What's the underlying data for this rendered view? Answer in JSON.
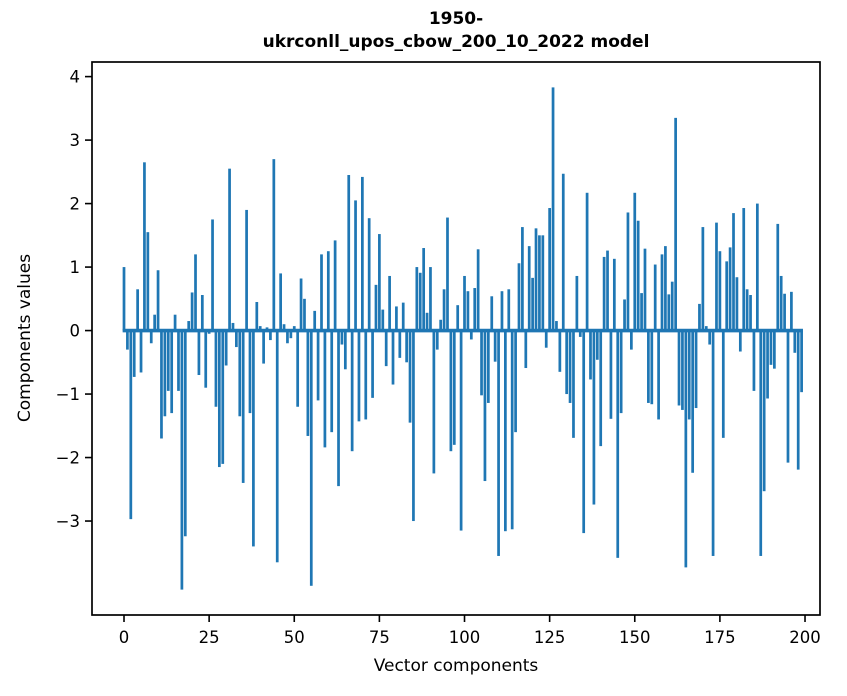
{
  "figure": {
    "title_line1": "1950-",
    "title_line2": "ukrconll_upos_cbow_200_10_2022 model",
    "xlabel": "Vector components",
    "ylabel": "Components values"
  },
  "chart_data": {
    "type": "bar",
    "title": "1950-\nukrconll_upos_cbow_200_10_2022 model",
    "xlabel": "Vector components",
    "ylabel": "Components values",
    "bar_color": "#1f77b4",
    "axis_color": "#000000",
    "background_color": "#ffffff",
    "grid": false,
    "legend_position": "none",
    "n_components": 200,
    "bar_width": 0.8,
    "xlim": [
      -9.4,
      204.4
    ],
    "ylim": [
      -4.48,
      4.23
    ],
    "xticks": [
      {
        "value": 0,
        "label": "0"
      },
      {
        "value": 25,
        "label": "25"
      },
      {
        "value": 50,
        "label": "50"
      },
      {
        "value": 75,
        "label": "75"
      },
      {
        "value": 100,
        "label": "100"
      },
      {
        "value": 125,
        "label": "125"
      },
      {
        "value": 150,
        "label": "150"
      },
      {
        "value": 175,
        "label": "175"
      },
      {
        "value": 200,
        "label": "200"
      }
    ],
    "yticks": [
      {
        "value": 4,
        "label": "4"
      },
      {
        "value": 3,
        "label": "3"
      },
      {
        "value": 2,
        "label": "2"
      },
      {
        "value": 1,
        "label": "1"
      },
      {
        "value": 0,
        "label": "0"
      },
      {
        "value": -1,
        "label": "−1"
      },
      {
        "value": -2,
        "label": "−2"
      },
      {
        "value": -3,
        "label": "−3"
      }
    ],
    "values": [
      1.0,
      -0.3,
      -2.97,
      -0.73,
      0.65,
      -0.66,
      2.65,
      1.55,
      -0.2,
      0.25,
      0.95,
      -1.7,
      -1.35,
      -0.95,
      -1.3,
      0.25,
      -0.95,
      -4.08,
      -3.24,
      0.15,
      0.6,
      1.2,
      -0.7,
      0.56,
      -0.9,
      -0.05,
      1.75,
      -1.2,
      -2.15,
      -2.1,
      -0.55,
      2.55,
      0.12,
      -0.26,
      -1.35,
      -2.4,
      1.9,
      -1.3,
      -3.4,
      0.45,
      0.07,
      -0.52,
      0.05,
      -0.15,
      2.7,
      -3.65,
      0.9,
      0.1,
      -0.2,
      -0.12,
      0.07,
      -1.2,
      0.82,
      0.5,
      -1.66,
      -4.02,
      0.31,
      -1.1,
      1.2,
      -1.84,
      1.25,
      -1.6,
      1.42,
      -2.45,
      -0.22,
      -0.61,
      2.45,
      -1.9,
      2.05,
      -1.43,
      2.42,
      -1.4,
      1.77,
      -1.06,
      0.72,
      1.52,
      0.33,
      -0.56,
      0.86,
      -0.85,
      0.38,
      -0.43,
      0.44,
      -0.5,
      -1.45,
      -3.0,
      1.0,
      0.91,
      1.3,
      0.28,
      1.0,
      -2.25,
      -0.3,
      0.17,
      0.65,
      1.78,
      -1.9,
      -1.8,
      0.4,
      -3.15,
      0.86,
      0.62,
      -0.14,
      0.67,
      1.28,
      -1.02,
      -2.37,
      -1.14,
      0.54,
      -0.49,
      -3.55,
      0.62,
      -3.16,
      0.65,
      -3.13,
      -1.6,
      1.06,
      1.63,
      -0.59,
      1.33,
      0.83,
      1.61,
      1.5,
      1.5,
      -0.27,
      1.93,
      3.83,
      0.15,
      -0.65,
      2.47,
      -1.0,
      -1.14,
      -1.69,
      0.86,
      -0.1,
      -3.19,
      2.17,
      -0.77,
      -2.74,
      -0.46,
      -1.82,
      1.16,
      1.26,
      -1.39,
      1.13,
      -3.58,
      -1.3,
      0.49,
      1.86,
      -0.3,
      2.17,
      1.73,
      0.59,
      1.29,
      -1.14,
      -1.16,
      1.04,
      -1.4,
      1.2,
      1.33,
      0.57,
      0.77,
      3.35,
      -1.18,
      -1.25,
      -3.73,
      -1.4,
      -2.24,
      -1.22,
      0.42,
      1.63,
      0.07,
      -0.22,
      -3.55,
      1.7,
      1.25,
      -1.69,
      1.09,
      1.31,
      1.85,
      0.84,
      -0.33,
      1.93,
      0.65,
      0.56,
      -0.95,
      2.0,
      -3.55,
      -2.53,
      -1.07,
      -0.54,
      -0.6,
      1.68,
      0.86,
      0.58,
      -2.08,
      0.61,
      -0.35,
      -2.19,
      -0.97
    ]
  }
}
